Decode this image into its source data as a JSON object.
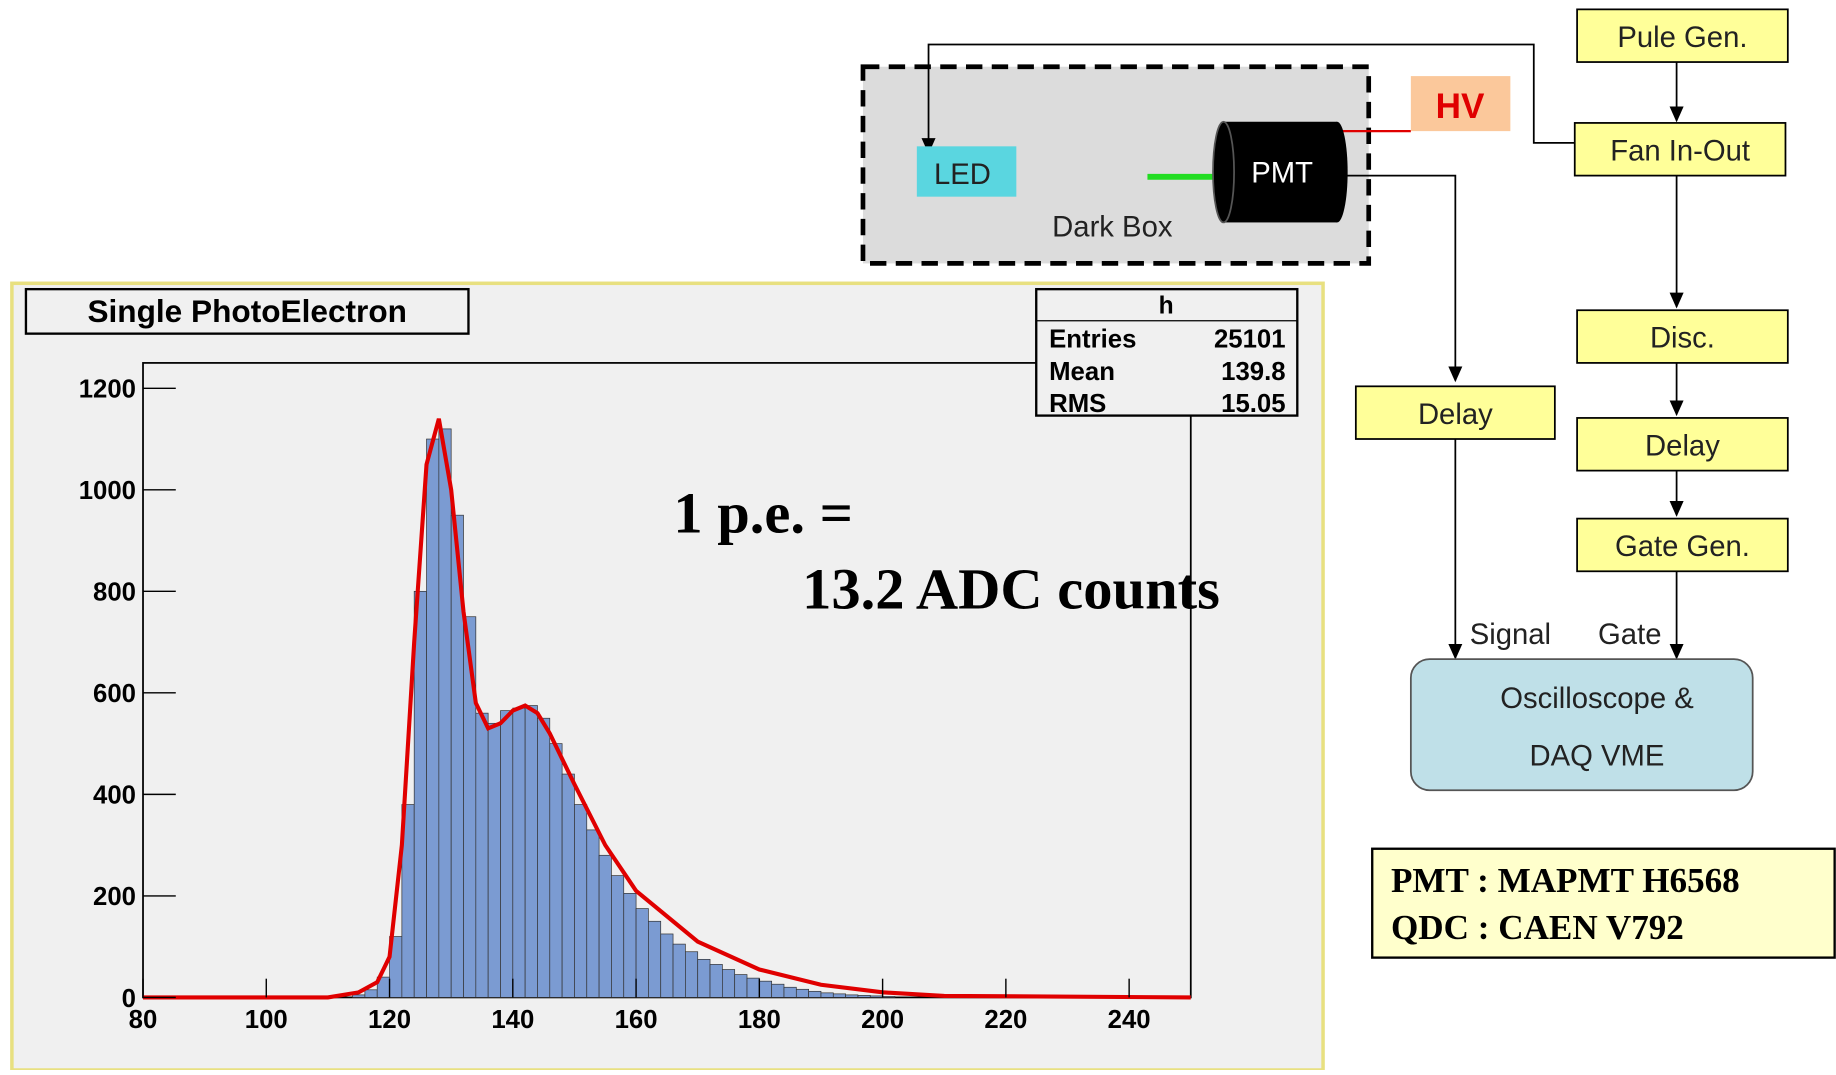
{
  "chart_data": {
    "type": "histogram",
    "title": "Single PhotoElectron",
    "bins": [
      114,
      116,
      118,
      120,
      122,
      124,
      126,
      128,
      130,
      132,
      134,
      136,
      138,
      140,
      142,
      144,
      146,
      148,
      150,
      152,
      154,
      156,
      158,
      160,
      162,
      164,
      166,
      168,
      170,
      172,
      174,
      176,
      178,
      180,
      182,
      184,
      186,
      188,
      190,
      192,
      194,
      196,
      198,
      200,
      202
    ],
    "counts": [
      5,
      15,
      40,
      120,
      380,
      800,
      1100,
      1120,
      950,
      750,
      560,
      540,
      565,
      570,
      575,
      550,
      500,
      440,
      380,
      330,
      280,
      240,
      205,
      175,
      150,
      125,
      105,
      90,
      75,
      65,
      55,
      45,
      38,
      32,
      26,
      20,
      16,
      12,
      9,
      7,
      5,
      4,
      3,
      2
    ],
    "color": "#7b9bd2",
    "fit": {
      "color": "#e00000",
      "x": [
        80,
        110,
        115,
        118,
        120,
        122,
        124,
        126,
        128,
        130,
        132,
        134,
        136,
        138,
        140,
        142,
        144,
        146,
        150,
        155,
        160,
        170,
        180,
        190,
        200,
        210,
        250
      ],
      "values": [
        0,
        0,
        10,
        30,
        80,
        300,
        700,
        1050,
        1140,
        1000,
        760,
        580,
        530,
        540,
        565,
        575,
        560,
        520,
        420,
        300,
        210,
        110,
        55,
        25,
        10,
        3,
        0
      ]
    },
    "xlim": [
      80,
      250
    ],
    "xticks": [
      80,
      100,
      120,
      140,
      160,
      180,
      200,
      220,
      240
    ],
    "ylim": [
      0,
      1250
    ],
    "yticks": [
      0,
      200,
      400,
      600,
      800,
      1000,
      1200
    ],
    "stats": {
      "title": "h",
      "rows": [
        {
          "label": "Entries",
          "value": 25101
        },
        {
          "label": "Mean",
          "value": 139.8
        },
        {
          "label": "RMS",
          "value": 15.05
        }
      ]
    },
    "annotations": [
      "1 p.e. =",
      "13.2 ADC counts"
    ]
  },
  "diagram": {
    "nodes": [
      {
        "label": "Pule Gen."
      },
      {
        "label": "Fan In-Out"
      },
      {
        "label": "Disc."
      },
      {
        "label": "Delay"
      },
      {
        "label": "Gate Gen."
      },
      {
        "label": "Delay"
      },
      {
        "label": "LED"
      },
      {
        "label": "PMT"
      },
      {
        "label": "HV"
      }
    ],
    "dark_box": "Dark Box",
    "oscilloscope": [
      "Oscilloscope &",
      "DAQ VME"
    ],
    "edge_labels": [
      "Signal",
      "Gate"
    ],
    "info": [
      "PMT : MAPMT H6568",
      "QDC : CAEN V792"
    ]
  }
}
